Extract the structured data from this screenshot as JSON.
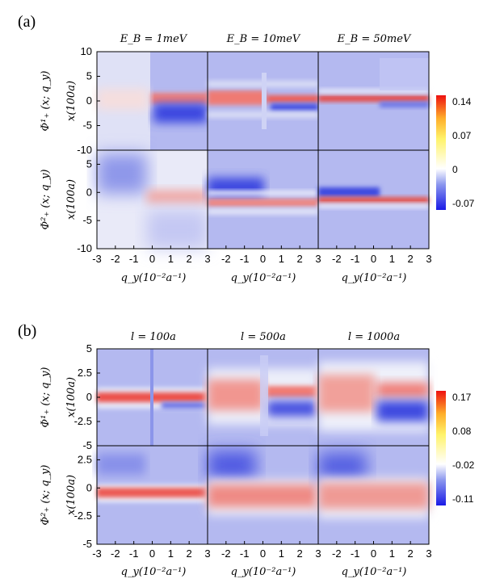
{
  "figure": {
    "panels": [
      {
        "id": "a",
        "label": "(a)",
        "column_titles": [
          "E_B = 1meV",
          "E_B = 10meV",
          "E_B = 50meV"
        ],
        "row_labels": [
          "Φ¹₊ (x; q_y)",
          "Φ²₊ (x; q_y)"
        ],
        "ylabel": "x(100a)",
        "xlabel": "q_y(10⁻²a⁻¹)",
        "yticks_top": [
          "10",
          "5",
          "0",
          "-5",
          "-10"
        ],
        "yticks_bottom": [
          "5",
          "0",
          "-5",
          "-10"
        ],
        "xticks_first": [
          "-3",
          "-2",
          "-1",
          "0",
          "1",
          "2",
          "3"
        ],
        "xticks_other": [
          "-2",
          "-1",
          "0",
          "1",
          "2",
          "3"
        ],
        "colorbar_ticks": [
          "0.14",
          "0.07",
          "0",
          "-0.07"
        ],
        "colors": {
          "background": "#b4b9f0",
          "positive": "#e83a2c",
          "negative": "#2a38e0",
          "zero": "#ffffff"
        }
      },
      {
        "id": "b",
        "label": "(b)",
        "column_titles": [
          "l = 100a",
          "l = 500a",
          "l = 1000a"
        ],
        "row_labels": [
          "Φ¹₊ (x; q_y)",
          "Φ²₊ (x; q_y)"
        ],
        "ylabel": "x(100a)",
        "xlabel": "q_y(10⁻²a⁻¹)",
        "yticks_top": [
          "5",
          "2.5",
          "0",
          "-2.5",
          "-5"
        ],
        "yticks_bottom": [
          "2.5",
          "0",
          "-2.5",
          "-5"
        ],
        "xticks_first": [
          "-3",
          "-2",
          "-1",
          "0",
          "1",
          "2",
          "3"
        ],
        "xticks_other": [
          "-2",
          "-1",
          "0",
          "1",
          "2",
          "3"
        ],
        "colorbar_ticks": [
          "0.17",
          "0.08",
          "-0.02",
          "-0.11"
        ],
        "colors": {
          "background": "#b4b9f0",
          "positive": "#e83a2c",
          "negative": "#2a38e0",
          "zero": "#ffffff"
        }
      }
    ]
  },
  "chart_data": [
    {
      "type": "heatmap",
      "title": "",
      "columns": [
        "E_B = 1meV",
        "E_B = 10meV",
        "E_B = 50meV"
      ],
      "rows": [
        "Φ¹₊ (x; q_y)",
        "Φ²₊ (x; q_y)"
      ],
      "xlabel": "q_y(10⁻²a⁻¹)",
      "ylabel": "x(100a)",
      "xlim": [
        -3,
        3
      ],
      "ylim": [
        -10,
        10
      ],
      "color_range": [
        -0.07,
        0.14
      ]
    },
    {
      "type": "heatmap",
      "title": "",
      "columns": [
        "l = 100a",
        "l = 500a",
        "l = 1000a"
      ],
      "rows": [
        "Φ¹₊ (x; q_y)",
        "Φ²₊ (x; q_y)"
      ],
      "xlabel": "q_y(10⁻²a⁻¹)",
      "ylabel": "x(100a)",
      "xlim": [
        -3,
        3
      ],
      "ylim": [
        -5,
        5
      ],
      "color_range": [
        -0.11,
        0.17
      ]
    }
  ]
}
